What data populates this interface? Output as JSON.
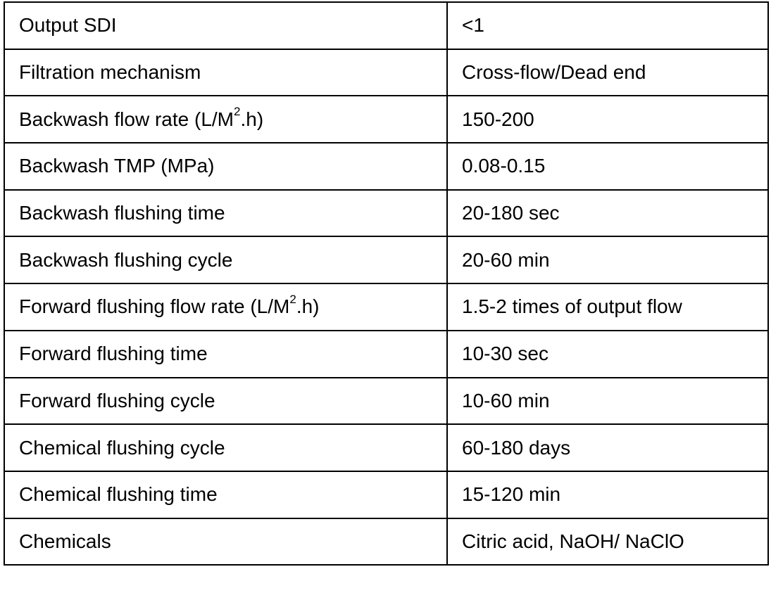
{
  "table": {
    "rows": [
      {
        "parameter": "Output SDI",
        "value": "<1"
      },
      {
        "parameter": "Filtration mechanism",
        "value": "Cross-flow/Dead end"
      },
      {
        "parameter": "Backwash flow rate (L/M",
        "superscript": "2",
        "suffix": ".h)",
        "value": "150-200"
      },
      {
        "parameter": "Backwash TMP (MPa)",
        "value": "0.08-0.15"
      },
      {
        "parameter": "Backwash flushing time",
        "value": "20-180 sec"
      },
      {
        "parameter": "Backwash flushing cycle",
        "value": "20-60 min"
      },
      {
        "parameter": "Forward flushing flow rate (L/M",
        "superscript": "2",
        "suffix": ".h)",
        "value": "1.5-2 times of output flow"
      },
      {
        "parameter": "Forward flushing time",
        "value": "10-30 sec"
      },
      {
        "parameter": "Forward flushing cycle",
        "value": "10-60 min"
      },
      {
        "parameter": "Chemical flushing cycle",
        "value": "60-180 days"
      },
      {
        "parameter": "Chemical flushing time",
        "value": "15-120 min"
      },
      {
        "parameter": "Chemicals",
        "value": "Citric acid, NaOH/ NaClO"
      }
    ]
  }
}
